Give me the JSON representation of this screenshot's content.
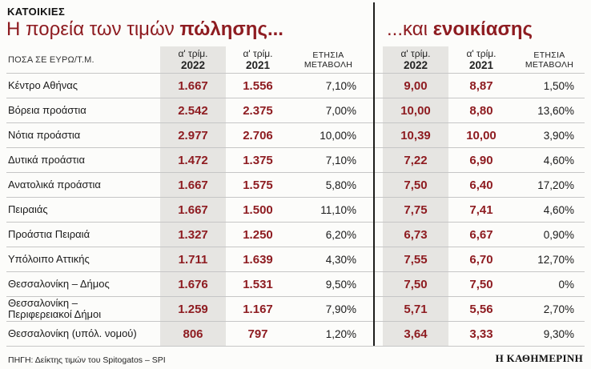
{
  "colors": {
    "accent": "#8e1c21",
    "shade": "#e6e5e2",
    "rule": "#c6c6c6",
    "divider": "#1d1d1b",
    "text": "#1a1a1a"
  },
  "header": {
    "kicker": "ΚΑΤΟΙΚΙΕΣ",
    "title_sale": {
      "regular": "Η πορεία των τιμών ",
      "bold": "πώλησης..."
    },
    "title_rent": {
      "regular": "...και ",
      "bold": "ενοικίασης"
    }
  },
  "chart_data": {
    "type": "table",
    "title": "Η πορεία των τιμών πώλησης... ...και ενοικίασης",
    "amounts_label": "ΠΟΣΑ ΣΕ ΕΥΡΩ/Τ.Μ.",
    "column_groups": [
      "πώλησης",
      "ενοικίασης"
    ],
    "col_headers": {
      "q2022": {
        "line1": "α' τρίμ.",
        "line2": "2022"
      },
      "q2021": {
        "line1": "α' τρίμ.",
        "line2": "2021"
      },
      "change": {
        "line1": "ΕΤΗΣΙΑ",
        "line2": "ΜΕΤΑΒΟΛΗ"
      }
    },
    "rows": [
      {
        "label": "Κέντρο Αθήνας",
        "sale_2022": "1.667",
        "sale_2021": "1.556",
        "sale_change": "7,10%",
        "rent_2022": "9,00",
        "rent_2021": "8,87",
        "rent_change": "1,50%"
      },
      {
        "label": "Βόρεια προάστια",
        "sale_2022": "2.542",
        "sale_2021": "2.375",
        "sale_change": "7,00%",
        "rent_2022": "10,00",
        "rent_2021": "8,80",
        "rent_change": "13,60%"
      },
      {
        "label": "Νότια προάστια",
        "sale_2022": "2.977",
        "sale_2021": "2.706",
        "sale_change": "10,00%",
        "rent_2022": "10,39",
        "rent_2021": "10,00",
        "rent_change": "3,90%"
      },
      {
        "label": "Δυτικά προάστια",
        "sale_2022": "1.472",
        "sale_2021": "1.375",
        "sale_change": "7,10%",
        "rent_2022": "7,22",
        "rent_2021": "6,90",
        "rent_change": "4,60%"
      },
      {
        "label": "Ανατολικά προάστια",
        "sale_2022": "1.667",
        "sale_2021": "1.575",
        "sale_change": "5,80%",
        "rent_2022": "7,50",
        "rent_2021": "6,40",
        "rent_change": "17,20%"
      },
      {
        "label": "Πειραιάς",
        "sale_2022": "1.667",
        "sale_2021": "1.500",
        "sale_change": "11,10%",
        "rent_2022": "7,75",
        "rent_2021": "7,41",
        "rent_change": "4,60%"
      },
      {
        "label": "Προάστια Πειραιά",
        "sale_2022": "1.327",
        "sale_2021": "1.250",
        "sale_change": "6,20%",
        "rent_2022": "6,73",
        "rent_2021": "6,67",
        "rent_change": "0,90%"
      },
      {
        "label": "Υπόλοιπο Αττικής",
        "sale_2022": "1.711",
        "sale_2021": "1.639",
        "sale_change": "4,30%",
        "rent_2022": "7,55",
        "rent_2021": "6,70",
        "rent_change": "12,70%"
      },
      {
        "label": "Θεσσαλονίκη – Δήμος",
        "sale_2022": "1.676",
        "sale_2021": "1.531",
        "sale_change": "9,50%",
        "rent_2022": "7,50",
        "rent_2021": "7,50",
        "rent_change": "0%"
      },
      {
        "label": "Θεσσαλονίκη –\nΠεριφερειακοί Δήμοι",
        "sale_2022": "1.259",
        "sale_2021": "1.167",
        "sale_change": "7,90%",
        "rent_2022": "5,71",
        "rent_2021": "5,56",
        "rent_change": "2,70%"
      },
      {
        "label": "Θεσσαλονίκη (υπόλ. νομού)",
        "sale_2022": "806",
        "sale_2021": "797",
        "sale_change": "1,20%",
        "rent_2022": "3,64",
        "rent_2021": "3,33",
        "rent_change": "9,30%"
      }
    ]
  },
  "footer": {
    "source": "ΠΗΓΗ: Δείκτης τιμών του Spitogatos – SPI",
    "brand": "Η ΚΑΘΗΜΕΡΙΝΗ"
  }
}
